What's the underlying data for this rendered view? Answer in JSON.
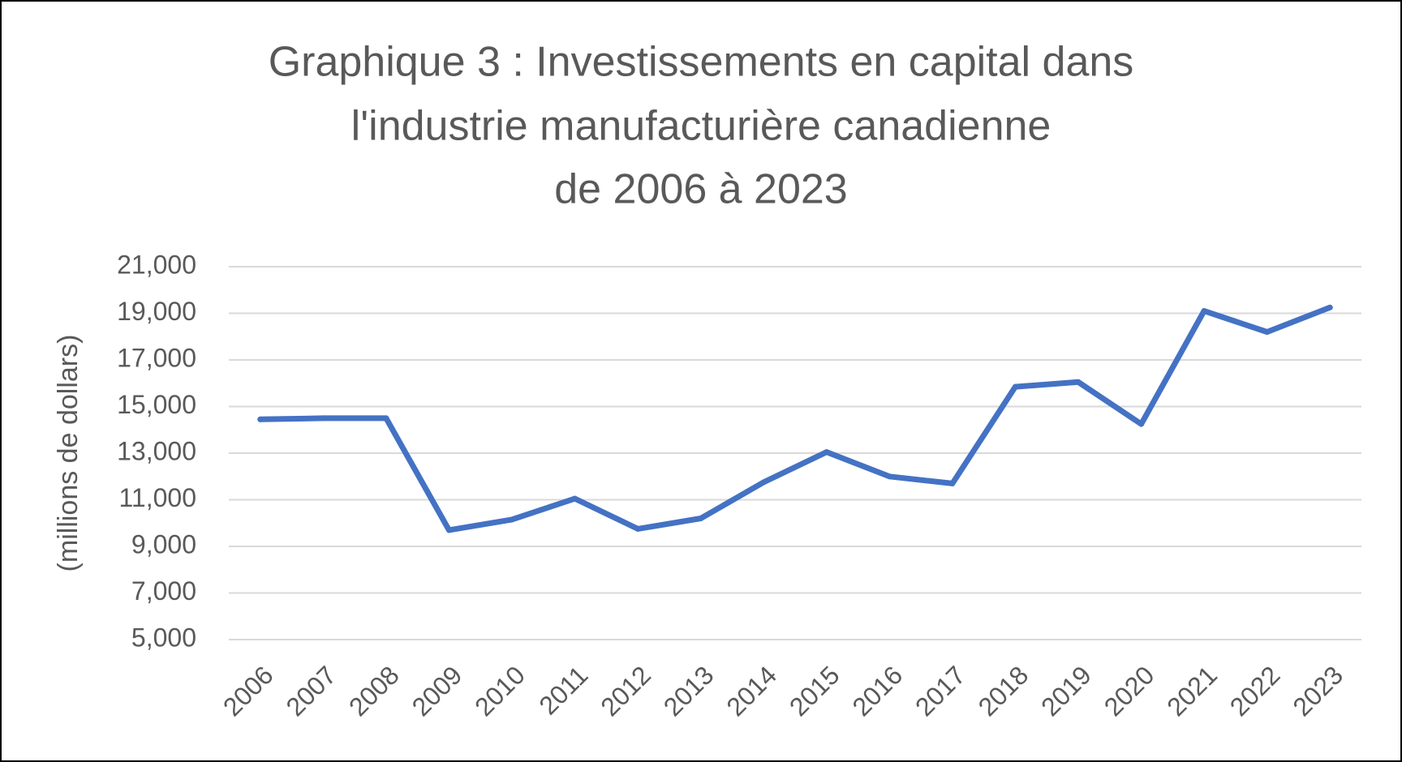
{
  "chart_data": {
    "type": "line",
    "title_lines": [
      "Graphique 3 : Investissements en capital dans",
      "l'industrie manufacturière canadienne",
      "de 2006 à 2023"
    ],
    "ylabel": "(millions de dollars)",
    "xlabel": "",
    "ylim": [
      5000,
      21000
    ],
    "yticks": [
      5000,
      7000,
      9000,
      11000,
      13000,
      15000,
      17000,
      19000,
      21000
    ],
    "ytick_labels": [
      "5,000",
      "7,000",
      "9,000",
      "11,000",
      "13,000",
      "15,000",
      "17,000",
      "19,000",
      "21,000"
    ],
    "categories": [
      "2006",
      "2007",
      "2008",
      "2009",
      "2010",
      "2011",
      "2012",
      "2013",
      "2014",
      "2015",
      "2016",
      "2017",
      "2018",
      "2019",
      "2020",
      "2021",
      "2022",
      "2023"
    ],
    "series": [
      {
        "values": [
          14450,
          14500,
          14500,
          9700,
          10150,
          11050,
          9750,
          10200,
          11750,
          13050,
          12000,
          11700,
          15850,
          16050,
          14250,
          19100,
          18200,
          19250
        ],
        "color": "#4472c4"
      }
    ],
    "grid": true,
    "legend": "none"
  }
}
